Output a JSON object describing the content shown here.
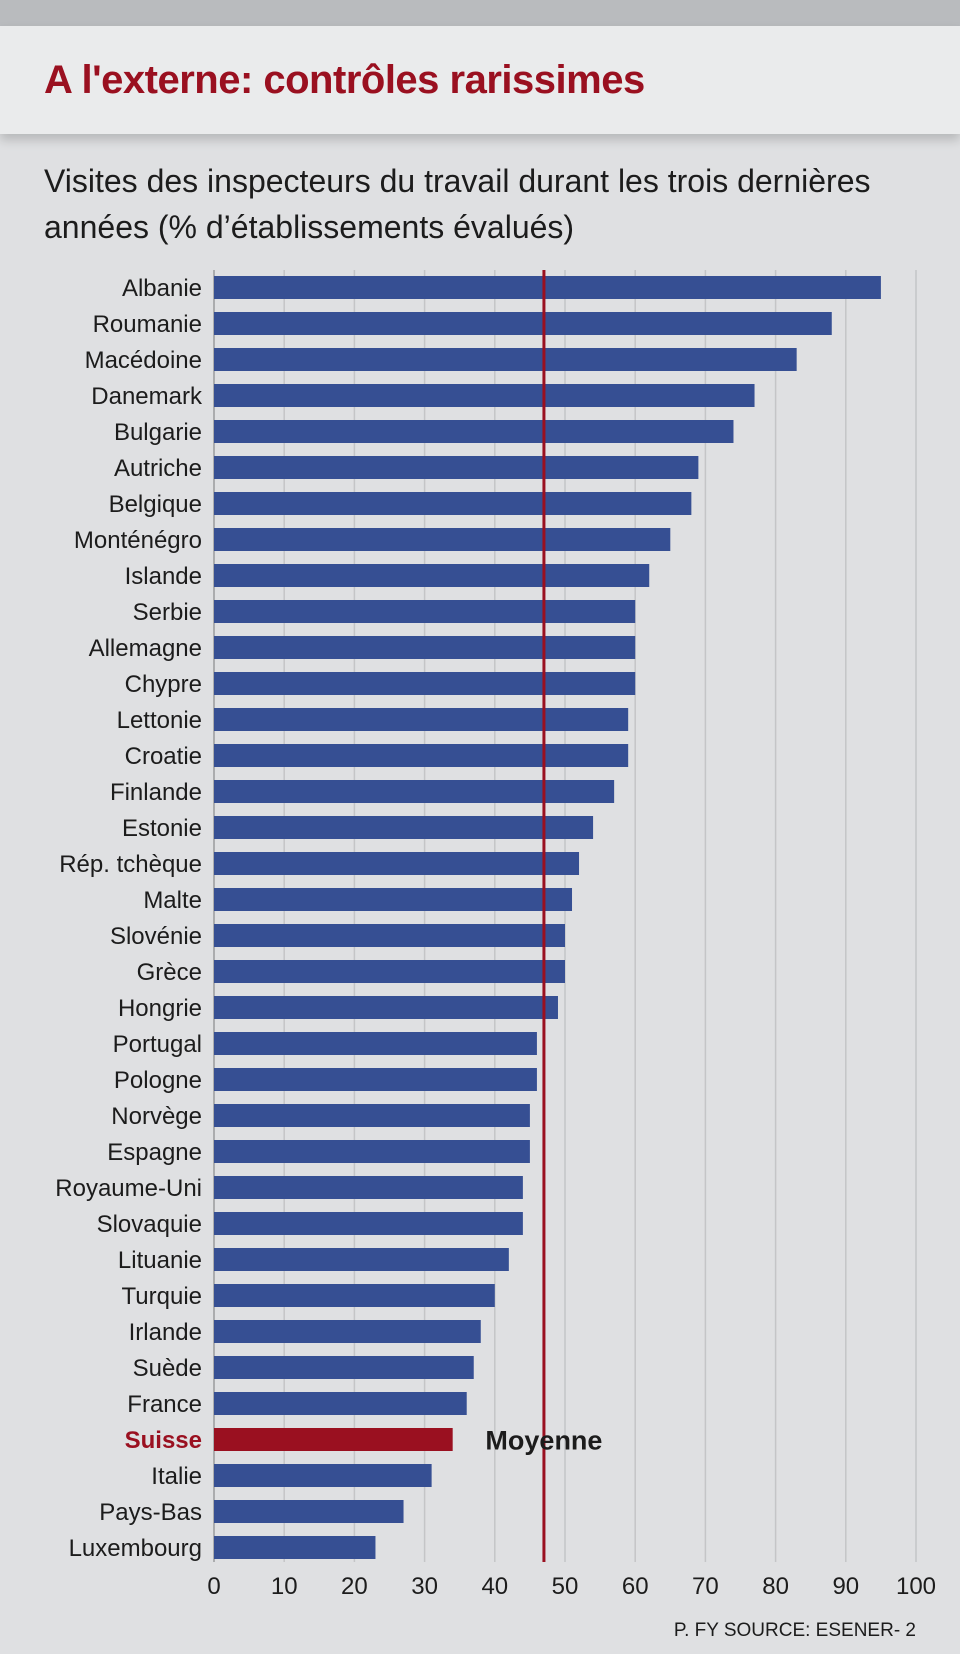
{
  "header": {
    "title": "A l'externe: contrôles rarissimes",
    "subtitle": "Visites des inspecteurs du travail durant les trois dernières années (% d’établissements évalués)"
  },
  "footer": {
    "source": "P. FY SOURCE: ESENER- 2"
  },
  "colors": {
    "bar": "#364f93",
    "highlight": "#9a1020",
    "grid": "#c4c5c7",
    "text": "#1c1c1c"
  },
  "chart_data": {
    "type": "bar",
    "orientation": "horizontal",
    "title": "A l'externe: contrôles rarissimes",
    "subtitle": "Visites des inspecteurs du travail durant les trois dernières années (% d’établissements évalués)",
    "xlim": [
      0,
      100
    ],
    "ticks": [
      0,
      10,
      20,
      30,
      40,
      50,
      60,
      70,
      80,
      90,
      100
    ],
    "grid": true,
    "highlight": "Suisse",
    "reference_line": {
      "label": "Moyenne",
      "value": 47
    },
    "categories": [
      "Albanie",
      "Roumanie",
      "Macédoine",
      "Danemark",
      "Bulgarie",
      "Autriche",
      "Belgique",
      "Monténégro",
      "Islande",
      "Serbie",
      "Allemagne",
      "Chypre",
      "Lettonie",
      "Croatie",
      "Finlande",
      "Estonie",
      "Rép. tchèque",
      "Malte",
      "Slovénie",
      "Grèce",
      "Hongrie",
      "Portugal",
      "Pologne",
      "Norvège",
      "Espagne",
      "Royaume-Uni",
      "Slovaquie",
      "Lituanie",
      "Turquie",
      "Irlande",
      "Suède",
      "France",
      "Suisse",
      "Italie",
      "Pays-Bas",
      "Luxembourg"
    ],
    "values": [
      95,
      88,
      83,
      77,
      74,
      69,
      68,
      65,
      62,
      60,
      60,
      60,
      59,
      59,
      57,
      54,
      52,
      51,
      50,
      50,
      49,
      46,
      46,
      45,
      45,
      44,
      44,
      42,
      40,
      38,
      37,
      36,
      34,
      31,
      27,
      23
    ]
  }
}
